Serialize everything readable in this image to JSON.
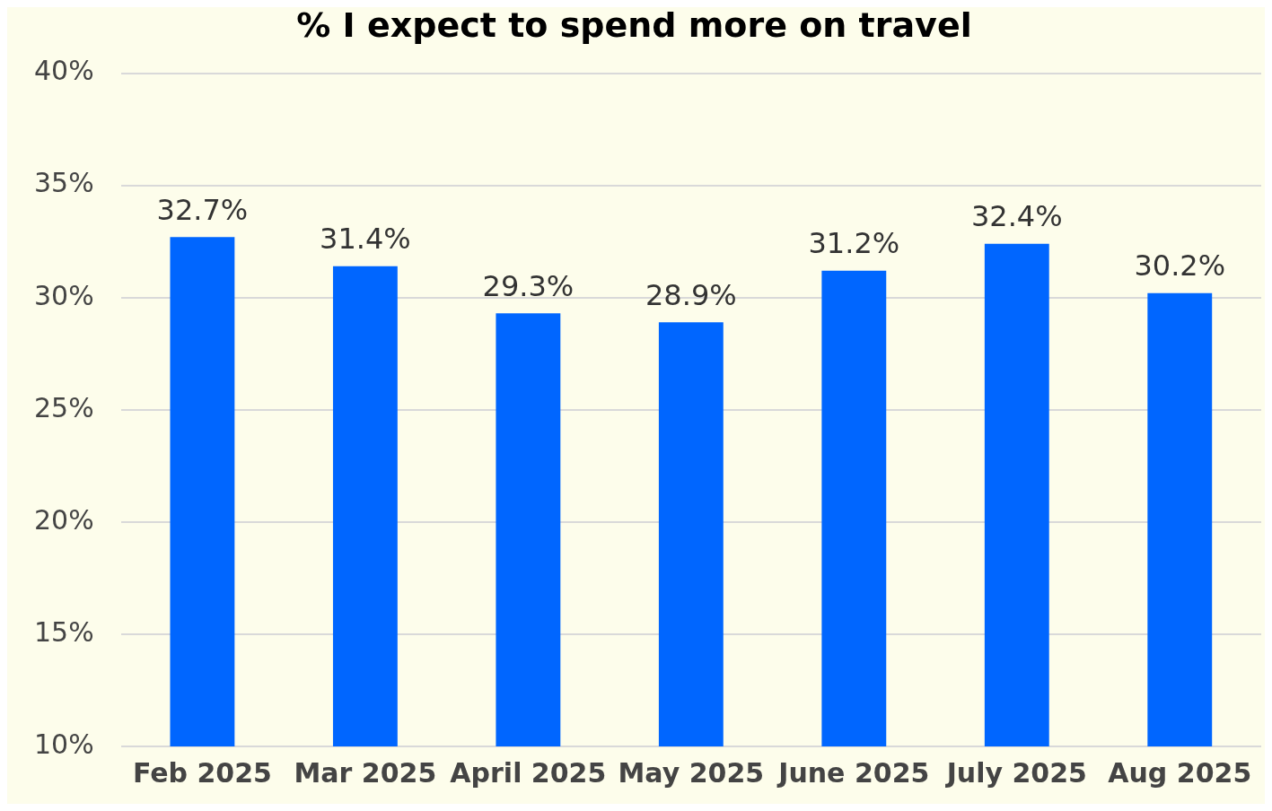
{
  "chart_data": {
    "type": "bar",
    "title": "% I expect to spend more on travel",
    "categories": [
      "Feb 2025",
      "Mar 2025",
      "April 2025",
      "May 2025",
      "June 2025",
      "July 2025",
      "Aug 2025"
    ],
    "values": [
      32.7,
      31.4,
      29.3,
      28.9,
      31.2,
      32.4,
      30.2
    ],
    "value_labels": [
      "32.7%",
      "31.4%",
      "29.3%",
      "28.9%",
      "31.2%",
      "32.4%",
      "30.2%"
    ],
    "color": "#0066ff",
    "ylim": [
      10,
      40
    ],
    "yticks": [
      {
        "value": 10,
        "label": "10%"
      },
      {
        "value": 15,
        "label": "15%"
      },
      {
        "value": 20,
        "label": "20%"
      },
      {
        "value": 25,
        "label": "25%"
      },
      {
        "value": 30,
        "label": "30%"
      },
      {
        "value": 35,
        "label": "35%"
      },
      {
        "value": 40,
        "label": "40%"
      }
    ],
    "grid": "y",
    "legend": false
  }
}
